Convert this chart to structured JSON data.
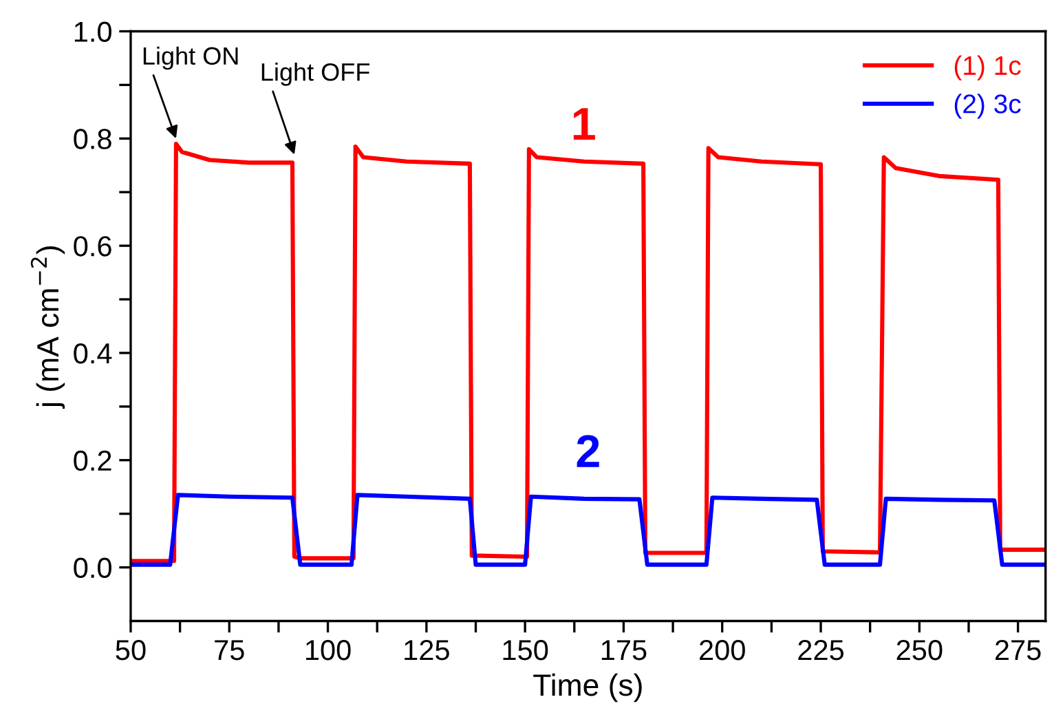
{
  "chart_data": {
    "type": "line",
    "xlabel": "Time (s)",
    "ylabel": "j (mA cm$^{−2}$)",
    "xlim": [
      50,
      282
    ],
    "ylim": [
      -0.1,
      1.0
    ],
    "xticks": [
      50,
      {
        "value": 62.5,
        "label": null
      },
      75,
      {
        "value": 87.5,
        "label": null
      },
      100,
      {
        "value": 112.5,
        "label": null
      },
      125,
      {
        "value": 137.5,
        "label": null
      },
      150,
      {
        "value": 162.5,
        "label": null
      },
      175,
      {
        "value": 187.5,
        "label": null
      },
      200,
      {
        "value": 212.5,
        "label": null
      },
      225,
      {
        "value": 237.5,
        "label": null
      },
      250,
      {
        "value": 262.5,
        "label": null
      },
      275
    ],
    "yticks": [
      {
        "value": 0,
        "label": "0.0"
      },
      {
        "value": 0.1,
        "label": null
      },
      0.2,
      {
        "value": 0.3,
        "label": null
      },
      0.4,
      {
        "value": 0.5,
        "label": null
      },
      0.6,
      {
        "value": 0.7,
        "label": null
      },
      0.8,
      {
        "value": 0.9,
        "label": null
      },
      {
        "value": 1.0,
        "label": "1.0"
      }
    ],
    "grid": false,
    "legend": "top right",
    "marker": "none",
    "line_style": "solid",
    "annotations": [
      {
        "text": "Light ON",
        "x": 61.5,
        "y": 0.8
      },
      {
        "text": "Light OFF",
        "x": 91.5,
        "y": 0.77
      },
      "1",
      "2"
    ],
    "series": [
      {
        "name": "(1) 1c",
        "color": "#ff0000",
        "x": [
          50,
          61,
          61.5,
          63,
          70,
          80,
          91,
          91.5,
          93,
          106.5,
          107,
          109,
          120,
          136,
          136.5,
          150.5,
          151,
          153,
          165,
          180,
          180.5,
          196,
          196.5,
          199,
          210,
          225,
          225.5,
          240,
          241,
          244,
          255,
          270,
          270.5,
          282
        ],
        "values": [
          0.012,
          0.012,
          0.79,
          0.775,
          0.76,
          0.755,
          0.755,
          0.02,
          0.017,
          0.017,
          0.785,
          0.765,
          0.757,
          0.753,
          0.022,
          0.02,
          0.78,
          0.765,
          0.757,
          0.753,
          0.027,
          0.027,
          0.782,
          0.765,
          0.757,
          0.752,
          0.03,
          0.028,
          0.765,
          0.745,
          0.73,
          0.723,
          0.033,
          0.033
        ]
      },
      {
        "name": "(2) 3c",
        "color": "#0000ff",
        "x": [
          50,
          60,
          62,
          75,
          91,
          93,
          106,
          107.5,
          120,
          136,
          137.5,
          150,
          151.5,
          165,
          179,
          181,
          196,
          197.5,
          210,
          224,
          226,
          240,
          241.5,
          255,
          269,
          271,
          282
        ],
        "values": [
          0.005,
          0.005,
          0.135,
          0.132,
          0.13,
          0.005,
          0.005,
          0.135,
          0.132,
          0.128,
          0.005,
          0.005,
          0.132,
          0.128,
          0.127,
          0.005,
          0.005,
          0.13,
          0.128,
          0.126,
          0.005,
          0.005,
          0.128,
          0.126,
          0.125,
          0.005,
          0.005
        ]
      }
    ]
  }
}
